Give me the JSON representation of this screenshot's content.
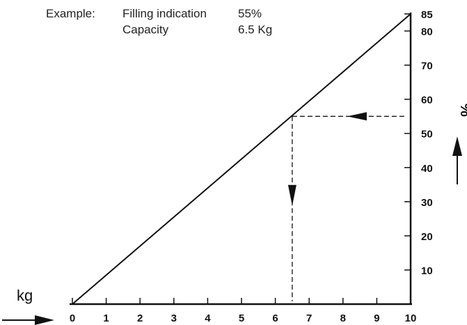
{
  "example": {
    "label": "Example:",
    "row1_name": "Filling indication",
    "row1_value": "55%",
    "row2_name": "Capacity",
    "row2_value": "6.5 Kg"
  },
  "chart_data": {
    "type": "line",
    "x_unit_label": "kg",
    "y_unit_label": "%",
    "xlim": [
      0,
      10
    ],
    "ylim": [
      0,
      85
    ],
    "x_ticks": [
      0,
      1,
      2,
      3,
      4,
      5,
      6,
      7,
      8,
      9,
      10
    ],
    "y_ticks": [
      10,
      20,
      30,
      40,
      50,
      60,
      70,
      80,
      85
    ],
    "series": [
      {
        "x": [
          0,
          10
        ],
        "y": [
          0,
          85
        ]
      }
    ],
    "example_point": {
      "x": 6.5,
      "y": 55
    },
    "grid": false
  }
}
